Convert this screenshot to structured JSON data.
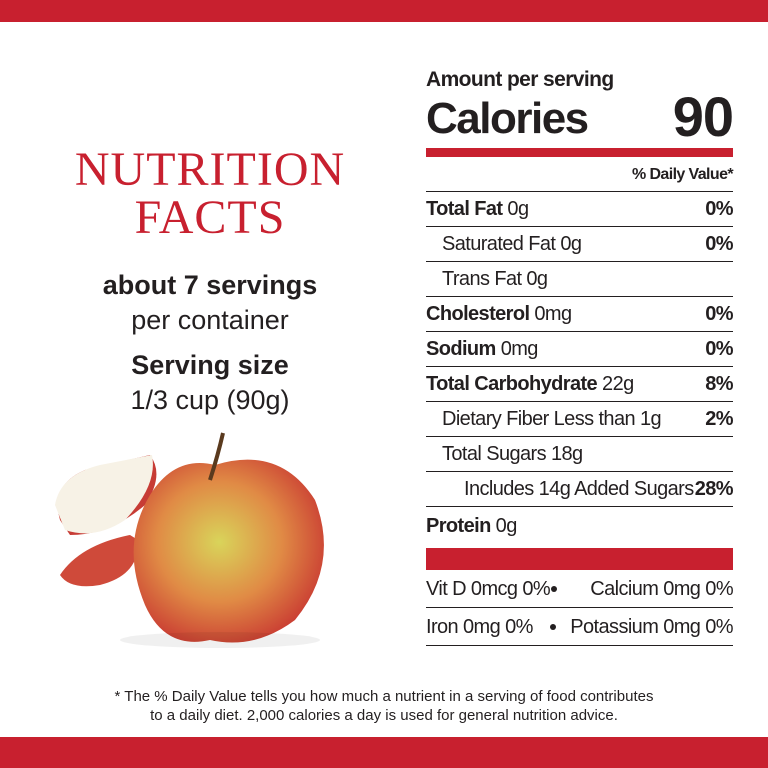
{
  "left": {
    "title_line1": "NUTRITION",
    "title_line2": "FACTS",
    "servings": "about 7 servings",
    "servings_unit": "per container",
    "serving_size_label": "Serving size",
    "serving_size": "1/3 cup (90g)"
  },
  "label": {
    "amount_per_serving": "Amount per serving",
    "calories_label": "Calories",
    "calories": 90,
    "daily_value_header": "% Daily Value*",
    "rows": [
      {
        "name": "Total Fat",
        "amount": "0g",
        "dv": "0%"
      },
      {
        "name": "Saturated Fat",
        "amount": "0g",
        "dv": "0%"
      },
      {
        "name": "Trans Fat",
        "amount": "0g"
      },
      {
        "name": "Cholesterol",
        "amount": "0mg",
        "dv": "0%"
      },
      {
        "name": "Sodium",
        "amount": "0mg",
        "dv": "0%"
      },
      {
        "name": "Total Carbohydrate",
        "amount": "22g",
        "dv": "8%"
      },
      {
        "name": "Dietary Fiber",
        "amount": "Less than 1g",
        "dv": "2%"
      },
      {
        "name": "Total Sugars",
        "amount": "18g"
      },
      {
        "name": "Includes 14g Added Sugars",
        "dv": "28%"
      },
      {
        "name": "Protein",
        "amount": "0g"
      }
    ],
    "vitamins": [
      [
        "Vit D 0mcg 0%",
        "Calcium 0mg 0%"
      ],
      [
        "Iron 0mg 0%",
        "Potassium 0mg 0%"
      ]
    ]
  },
  "footnote": {
    "line1": "* The % Daily Value tells you how much a nutrient in a serving of food contributes",
    "line2": "to a daily diet. 2,000 calories a day is used for general nutrition advice."
  }
}
